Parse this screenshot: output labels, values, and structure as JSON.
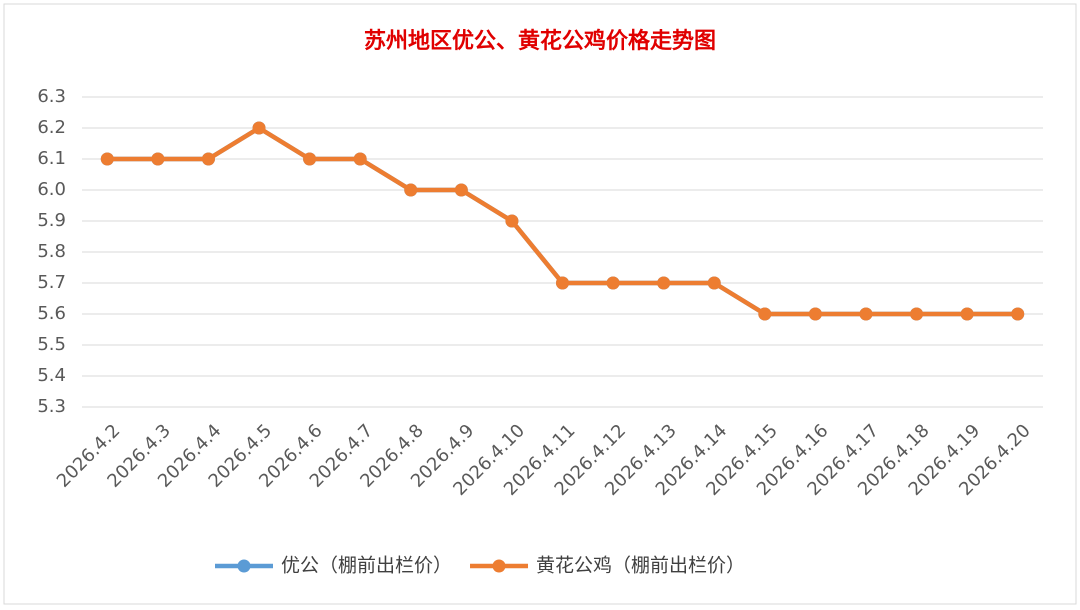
{
  "chart_data": {
    "type": "line",
    "title": "苏州地区优公、黄花公鸡价格走势图",
    "categories": [
      "2026.4.2",
      "2026.4.3",
      "2026.4.4",
      "2026.4.5",
      "2026.4.6",
      "2026.4.7",
      "2026.4.8",
      "2026.4.9",
      "2026.4.10",
      "2026.4.11",
      "2026.4.12",
      "2026.4.13",
      "2026.4.14",
      "2026.4.15",
      "2026.4.16",
      "2026.4.17",
      "2026.4.18",
      "2026.4.19",
      "2026.4.20"
    ],
    "series": [
      {
        "name": "优公（棚前出栏价）",
        "color": "#5b9bd5",
        "values": [
          6.1,
          6.1,
          6.1,
          6.2,
          6.1,
          6.1,
          6.0,
          6.0,
          5.9,
          5.7,
          5.7,
          5.7,
          5.7,
          5.6,
          5.6,
          5.6,
          5.6,
          5.6,
          5.6
        ]
      },
      {
        "name": "黄花公鸡（棚前出栏价）",
        "color": "#ed7d31",
        "values": [
          6.1,
          6.1,
          6.1,
          6.2,
          6.1,
          6.1,
          6.0,
          6.0,
          5.9,
          5.7,
          5.7,
          5.7,
          5.7,
          5.6,
          5.6,
          5.6,
          5.6,
          5.6,
          5.6
        ]
      }
    ],
    "ylim": [
      5.3,
      6.3
    ],
    "yticks": [
      5.3,
      5.4,
      5.5,
      5.6,
      5.7,
      5.8,
      5.9,
      {
        "value": 6,
        "label": "6.0"
      },
      6.1,
      6.2,
      6.3
    ],
    "grid": true,
    "legend": "bottom"
  }
}
